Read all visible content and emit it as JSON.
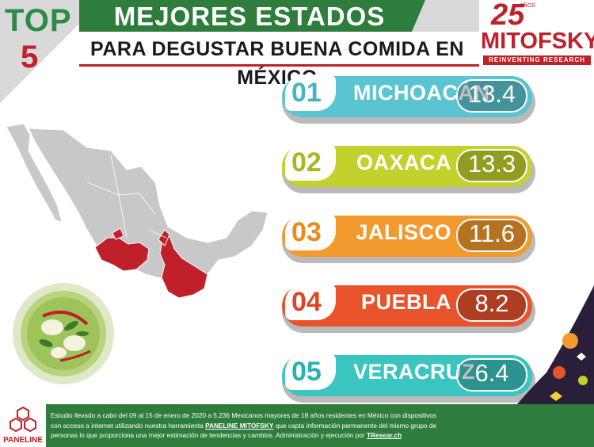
{
  "header": {
    "top_word": "TOP",
    "top_number": "5",
    "title": "MEJORES ESTADOS",
    "subtitle": "PARA DEGUSTAR BUENA COMIDA EN MÉXICO"
  },
  "logo": {
    "anniversary": "25",
    "anos": "AÑOS",
    "name": "MITOFSKY",
    "tagline": "REINVENTING RESEARCH"
  },
  "ranking": [
    {
      "rank": "01",
      "state": "MICHOACÁN",
      "value": "13.4",
      "color": "#5bc4d1",
      "rank_color": "#49b3c0"
    },
    {
      "rank": "02",
      "state": "OAXACA",
      "value": "13.3",
      "color": "#c2d12b",
      "rank_color": "#a8b820"
    },
    {
      "rank": "03",
      "state": "JALISCO",
      "value": "11.6",
      "color": "#f29a2e",
      "rank_color": "#ec8a1a"
    },
    {
      "rank": "04",
      "state": "PUEBLA",
      "value": "8.2",
      "color": "#e8532c",
      "rank_color": "#dd4522"
    },
    {
      "rank": "05",
      "state": "VERACRUZ",
      "value": "6.4",
      "color": "#3cc5c0",
      "rank_color": "#27b3ae"
    }
  ],
  "footer": {
    "brand": "PANELINE",
    "text_1": "Estudio llevado a cabo del 09 al 15 de enero de 2020 a 5,236 Mexicanos mayores de 18 años residentes en México con dispositivos con acceso a internet utilizando nuestra herramienta ",
    "tool": "PANELINE MITOFSKY",
    "text_2": " que capta información permanente del mismo grupo de personas lo que proporciona una mejor estimación de tendencias y cambios. Administración y ejecución por ",
    "executor": "TResear.ch"
  },
  "colors": {
    "green": "#2e7d3c",
    "red": "#c0202a",
    "map_grey": "#c8c8c8",
    "map_highlight": "#c0202a"
  }
}
